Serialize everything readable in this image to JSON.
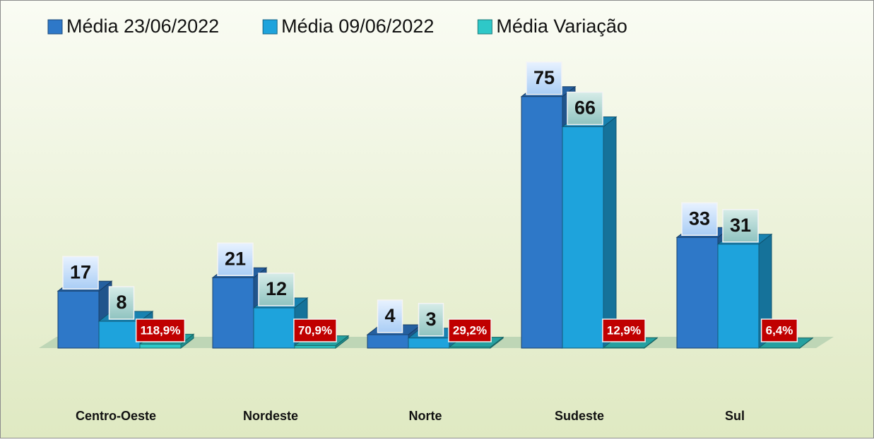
{
  "chart_data": {
    "type": "bar3d",
    "categories": [
      "Centro-Oeste",
      "Nordeste",
      "Norte",
      "Sudeste",
      "Sul"
    ],
    "series": [
      {
        "name": "Média 23/06/2022",
        "color": "#2e78c8",
        "values": [
          17,
          21,
          4,
          75,
          33
        ]
      },
      {
        "name": "Média 09/06/2022",
        "color": "#1ea3dc",
        "values": [
          8,
          12,
          3,
          66,
          31
        ]
      },
      {
        "name": "Média Variação",
        "color": "#2ec8c8",
        "values": [
          1.189,
          0.709,
          0.292,
          0.129,
          0.064
        ],
        "value_labels": [
          "118,9%",
          "70,9%",
          "29,2%",
          "12,9%",
          "6,4%"
        ]
      }
    ],
    "ylim": [
      0,
      80
    ],
    "legend": "top"
  }
}
